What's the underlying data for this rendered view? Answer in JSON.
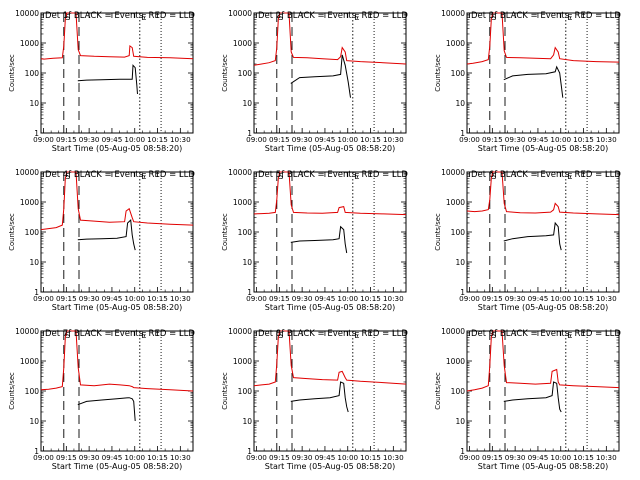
{
  "window": {
    "title": ""
  },
  "common": {
    "ylabel": "Counts/sec",
    "xlabel": "Start Time (05-Aug-05 08:58:20)",
    "x_ticks": [
      "09:00",
      "09:15",
      "09:30",
      "09:45",
      "10:00",
      "10:15",
      "10:30"
    ],
    "y_ticks": [
      "1",
      "10",
      "100",
      "1000",
      "10000"
    ],
    "marker_S": "S",
    "marker_E": "E"
  },
  "colors": {
    "events": "#000000",
    "lld": "#e00000",
    "axes": "#000000",
    "background": "#ffffff"
  },
  "chart_data": [
    {
      "type": "line",
      "title": "Det 1f BLACK = Events, RED = LLD",
      "ylog": true,
      "ylim": [
        1,
        10000
      ],
      "x_range_minutes": [
        0,
        100
      ],
      "events": [
        [
          0,
          null
        ],
        [
          24,
          null
        ],
        [
          24.2,
          55
        ],
        [
          30,
          58
        ],
        [
          40,
          60
        ],
        [
          52,
          62
        ],
        [
          60,
          62
        ],
        [
          60.5,
          180
        ],
        [
          62,
          150
        ],
        [
          63,
          40
        ],
        [
          63.5,
          20
        ]
      ],
      "lld": [
        [
          0,
          300
        ],
        [
          2,
          290
        ],
        [
          8,
          310
        ],
        [
          14,
          320
        ],
        [
          15,
          800
        ],
        [
          16,
          6000
        ],
        [
          17,
          10000
        ],
        [
          23,
          10000
        ],
        [
          24.5,
          600
        ],
        [
          26,
          380
        ],
        [
          35,
          360
        ],
        [
          45,
          350
        ],
        [
          55,
          340
        ],
        [
          58,
          380
        ],
        [
          58.5,
          800
        ],
        [
          60,
          700
        ],
        [
          61,
          360
        ],
        [
          70,
          330
        ],
        [
          85,
          320
        ],
        [
          100,
          300
        ]
      ],
      "marker_lines": [
        15,
        25,
        65,
        79
      ],
      "markers": {
        "S": 16,
        "E": 66
      }
    },
    {
      "type": "line",
      "title": "Det 2f BLACK = Events, RED = LLD",
      "ylog": true,
      "ylim": [
        1,
        10000
      ],
      "x_range_minutes": [
        0,
        100
      ],
      "events": [
        [
          0,
          null
        ],
        [
          24,
          null
        ],
        [
          24.2,
          45
        ],
        [
          30,
          70
        ],
        [
          40,
          75
        ],
        [
          52,
          80
        ],
        [
          57,
          90
        ],
        [
          58,
          400
        ],
        [
          60,
          180
        ],
        [
          62,
          50
        ],
        [
          63.5,
          15
        ]
      ],
      "lld": [
        [
          0,
          180
        ],
        [
          5,
          200
        ],
        [
          10,
          220
        ],
        [
          14,
          260
        ],
        [
          15,
          700
        ],
        [
          16,
          6000
        ],
        [
          17,
          10000
        ],
        [
          23,
          10000
        ],
        [
          24.5,
          500
        ],
        [
          26,
          330
        ],
        [
          35,
          320
        ],
        [
          45,
          300
        ],
        [
          55,
          280
        ],
        [
          57,
          350
        ],
        [
          58,
          700
        ],
        [
          60,
          500
        ],
        [
          61,
          260
        ],
        [
          70,
          240
        ],
        [
          85,
          220
        ],
        [
          100,
          200
        ]
      ],
      "marker_lines": [
        15,
        25,
        65,
        79
      ],
      "markers": {
        "S": 16,
        "E": 66
      }
    },
    {
      "type": "line",
      "title": "Det 3f BLACK = Events, RED = LLD",
      "ylog": true,
      "ylim": [
        1,
        10000
      ],
      "x_range_minutes": [
        0,
        100
      ],
      "events": [
        [
          0,
          null
        ],
        [
          24,
          null
        ],
        [
          24.2,
          60
        ],
        [
          30,
          80
        ],
        [
          40,
          90
        ],
        [
          52,
          95
        ],
        [
          58,
          110
        ],
        [
          59,
          160
        ],
        [
          61,
          100
        ],
        [
          62,
          40
        ],
        [
          63,
          15
        ]
      ],
      "lld": [
        [
          0,
          200
        ],
        [
          4,
          210
        ],
        [
          10,
          240
        ],
        [
          14,
          280
        ],
        [
          15,
          800
        ],
        [
          16,
          6000
        ],
        [
          17,
          10000
        ],
        [
          23,
          10000
        ],
        [
          24.5,
          550
        ],
        [
          26,
          330
        ],
        [
          35,
          320
        ],
        [
          45,
          310
        ],
        [
          55,
          300
        ],
        [
          57,
          400
        ],
        [
          58,
          700
        ],
        [
          60,
          500
        ],
        [
          61,
          300
        ],
        [
          70,
          260
        ],
        [
          85,
          240
        ],
        [
          100,
          230
        ]
      ],
      "marker_lines": [
        15,
        25,
        65,
        79
      ],
      "markers": {
        "S": 16,
        "E": 66
      }
    },
    {
      "type": "line",
      "title": "Det 4f BLACK = Events, RED = LLD",
      "ylog": true,
      "ylim": [
        1,
        10000
      ],
      "x_range_minutes": [
        0,
        100
      ],
      "events": [
        [
          0,
          null
        ],
        [
          24,
          null
        ],
        [
          24.2,
          55
        ],
        [
          30,
          58
        ],
        [
          40,
          60
        ],
        [
          50,
          62
        ],
        [
          56,
          70
        ],
        [
          57,
          200
        ],
        [
          59,
          250
        ],
        [
          60,
          80
        ],
        [
          61,
          40
        ],
        [
          62,
          25
        ]
      ],
      "lld": [
        [
          0,
          120
        ],
        [
          5,
          130
        ],
        [
          10,
          140
        ],
        [
          14,
          170
        ],
        [
          15,
          600
        ],
        [
          16,
          6000
        ],
        [
          17,
          10000
        ],
        [
          23,
          10000
        ],
        [
          24.5,
          600
        ],
        [
          26,
          250
        ],
        [
          35,
          230
        ],
        [
          45,
          210
        ],
        [
          55,
          220
        ],
        [
          56,
          500
        ],
        [
          58,
          600
        ],
        [
          60,
          300
        ],
        [
          61,
          220
        ],
        [
          70,
          200
        ],
        [
          85,
          180
        ],
        [
          100,
          170
        ]
      ],
      "marker_lines": [
        15,
        25,
        65,
        79
      ],
      "markers": {
        "S": 16,
        "E": 66
      }
    },
    {
      "type": "line",
      "title": "Det 5f BLACK = Events, RED = LLD",
      "ylog": true,
      "ylim": [
        1,
        10000
      ],
      "x_range_minutes": [
        0,
        100
      ],
      "events": [
        [
          0,
          null
        ],
        [
          24,
          null
        ],
        [
          24.2,
          45
        ],
        [
          30,
          50
        ],
        [
          40,
          52
        ],
        [
          52,
          55
        ],
        [
          56,
          60
        ],
        [
          57,
          150
        ],
        [
          59,
          120
        ],
        [
          60,
          40
        ],
        [
          61,
          20
        ]
      ],
      "lld": [
        [
          0,
          400
        ],
        [
          5,
          410
        ],
        [
          10,
          420
        ],
        [
          14,
          450
        ],
        [
          15,
          1200
        ],
        [
          16,
          6000
        ],
        [
          17,
          10000
        ],
        [
          23,
          10000
        ],
        [
          24.5,
          800
        ],
        [
          26,
          450
        ],
        [
          35,
          430
        ],
        [
          45,
          420
        ],
        [
          55,
          450
        ],
        [
          56,
          650
        ],
        [
          59,
          700
        ],
        [
          60,
          450
        ],
        [
          70,
          420
        ],
        [
          85,
          400
        ],
        [
          100,
          380
        ]
      ],
      "marker_lines": [
        15,
        25,
        65,
        79
      ],
      "markers": {
        "S": 16,
        "E": 66
      }
    },
    {
      "type": "line",
      "title": "Det 6f BLACK = Events, RED = LLD",
      "ylog": true,
      "ylim": [
        1,
        10000
      ],
      "x_range_minutes": [
        0,
        100
      ],
      "events": [
        [
          0,
          null
        ],
        [
          24,
          null
        ],
        [
          24.2,
          50
        ],
        [
          30,
          60
        ],
        [
          40,
          70
        ],
        [
          52,
          75
        ],
        [
          57,
          80
        ],
        [
          58,
          200
        ],
        [
          60,
          150
        ],
        [
          61,
          40
        ],
        [
          62,
          25
        ]
      ],
      "lld": [
        [
          0,
          500
        ],
        [
          5,
          480
        ],
        [
          10,
          500
        ],
        [
          14,
          560
        ],
        [
          15,
          1200
        ],
        [
          16,
          6000
        ],
        [
          17,
          10000
        ],
        [
          23,
          10000
        ],
        [
          24.5,
          900
        ],
        [
          26,
          480
        ],
        [
          35,
          440
        ],
        [
          45,
          430
        ],
        [
          55,
          460
        ],
        [
          57,
          550
        ],
        [
          58,
          900
        ],
        [
          60,
          700
        ],
        [
          61,
          460
        ],
        [
          70,
          430
        ],
        [
          85,
          400
        ],
        [
          100,
          380
        ]
      ],
      "marker_lines": [
        15,
        25,
        65,
        79
      ],
      "markers": {
        "S": 16,
        "E": 66
      }
    },
    {
      "type": "line",
      "title": "Det 7f BLACK = Events, RED = LLD",
      "ylog": true,
      "ylim": [
        1,
        10000
      ],
      "x_range_minutes": [
        0,
        100
      ],
      "events": [
        [
          0,
          null
        ],
        [
          24,
          null
        ],
        [
          24.2,
          35
        ],
        [
          30,
          45
        ],
        [
          40,
          50
        ],
        [
          50,
          55
        ],
        [
          58,
          60
        ],
        [
          60,
          55
        ],
        [
          61,
          45
        ],
        [
          62,
          10
        ]
      ],
      "lld": [
        [
          0,
          110
        ],
        [
          5,
          115
        ],
        [
          10,
          125
        ],
        [
          14,
          140
        ],
        [
          15,
          600
        ],
        [
          16,
          6000
        ],
        [
          17,
          10000
        ],
        [
          23,
          10000
        ],
        [
          24.5,
          600
        ],
        [
          26,
          160
        ],
        [
          35,
          150
        ],
        [
          45,
          170
        ],
        [
          52,
          160
        ],
        [
          58,
          150
        ],
        [
          60,
          140
        ],
        [
          61,
          130
        ],
        [
          70,
          120
        ],
        [
          85,
          110
        ],
        [
          100,
          100
        ]
      ],
      "marker_lines": [
        15,
        25,
        65,
        79
      ],
      "markers": {
        "S": 16,
        "E": 66
      }
    },
    {
      "type": "line",
      "title": "Det 8f BLACK = Events, RED = LLD",
      "ylog": true,
      "ylim": [
        1,
        10000
      ],
      "x_range_minutes": [
        0,
        100
      ],
      "events": [
        [
          0,
          null
        ],
        [
          24,
          null
        ],
        [
          24.2,
          45
        ],
        [
          30,
          50
        ],
        [
          40,
          55
        ],
        [
          50,
          60
        ],
        [
          56,
          70
        ],
        [
          57,
          200
        ],
        [
          59,
          180
        ],
        [
          60,
          60
        ],
        [
          61,
          30
        ],
        [
          62,
          20
        ]
      ],
      "lld": [
        [
          0,
          150
        ],
        [
          5,
          160
        ],
        [
          10,
          170
        ],
        [
          14,
          200
        ],
        [
          15,
          800
        ],
        [
          16,
          6000
        ],
        [
          17,
          10000
        ],
        [
          23,
          10000
        ],
        [
          24.5,
          700
        ],
        [
          26,
          280
        ],
        [
          35,
          260
        ],
        [
          45,
          240
        ],
        [
          55,
          230
        ],
        [
          56,
          420
        ],
        [
          58,
          450
        ],
        [
          60,
          280
        ],
        [
          61,
          230
        ],
        [
          70,
          210
        ],
        [
          85,
          190
        ],
        [
          100,
          170
        ]
      ],
      "marker_lines": [
        15,
        25,
        65,
        79
      ],
      "markers": {
        "S": 16,
        "E": 66
      }
    },
    {
      "type": "line",
      "title": "Det 9f BLACK = Events, RED = LLD",
      "ylog": true,
      "ylim": [
        1,
        10000
      ],
      "x_range_minutes": [
        0,
        100
      ],
      "events": [
        [
          0,
          null
        ],
        [
          24,
          null
        ],
        [
          24.2,
          45
        ],
        [
          30,
          50
        ],
        [
          40,
          55
        ],
        [
          52,
          60
        ],
        [
          56,
          70
        ],
        [
          57,
          200
        ],
        [
          59,
          180
        ],
        [
          60,
          60
        ],
        [
          61,
          25
        ],
        [
          62,
          20
        ]
      ],
      "lld": [
        [
          0,
          100
        ],
        [
          5,
          110
        ],
        [
          10,
          125
        ],
        [
          14,
          150
        ],
        [
          15,
          700
        ],
        [
          16,
          6000
        ],
        [
          17,
          10000
        ],
        [
          23,
          10000
        ],
        [
          24.5,
          700
        ],
        [
          26,
          190
        ],
        [
          35,
          180
        ],
        [
          45,
          170
        ],
        [
          55,
          180
        ],
        [
          56,
          450
        ],
        [
          59,
          520
        ],
        [
          60,
          200
        ],
        [
          61,
          160
        ],
        [
          70,
          150
        ],
        [
          85,
          140
        ],
        [
          100,
          130
        ]
      ],
      "marker_lines": [
        15,
        25,
        65,
        79
      ],
      "markers": {
        "S": 16,
        "E": 66
      }
    }
  ]
}
